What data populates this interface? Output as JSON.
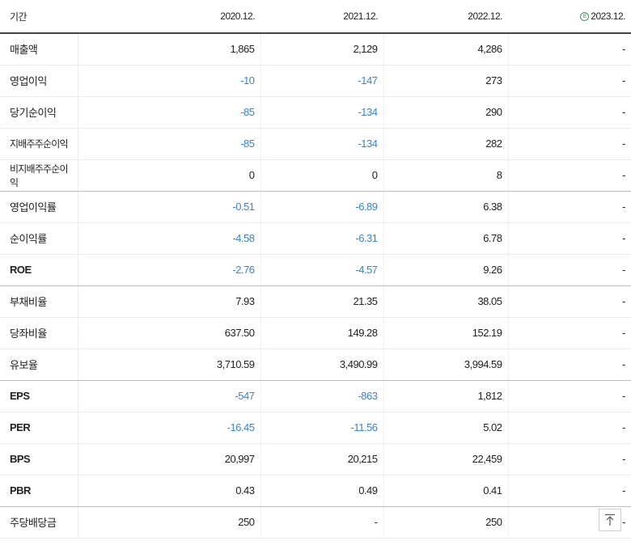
{
  "header": {
    "period_label": "기간",
    "columns": [
      "2020.12.",
      "2021.12.",
      "2022.12.",
      "2023.12."
    ],
    "estimate_badge": "E"
  },
  "rows": [
    {
      "label": "매출액",
      "values": [
        "1,865",
        "2,129",
        "4,286",
        "-"
      ]
    },
    {
      "label": "영업이익",
      "values": [
        "-10",
        "-147",
        "273",
        "-"
      ]
    },
    {
      "label": "당기순이익",
      "values": [
        "-85",
        "-134",
        "290",
        "-"
      ]
    },
    {
      "label": "지배주주순이익",
      "values": [
        "-85",
        "-134",
        "282",
        "-"
      ]
    },
    {
      "label": "비지배주주순이익",
      "values": [
        "0",
        "0",
        "8",
        "-"
      ]
    },
    {
      "label": "영업이익률",
      "values": [
        "-0.51",
        "-6.89",
        "6.38",
        "-"
      ]
    },
    {
      "label": "순이익률",
      "values": [
        "-4.58",
        "-6.31",
        "6.78",
        "-"
      ]
    },
    {
      "label": "ROE",
      "values": [
        "-2.76",
        "-4.57",
        "9.26",
        "-"
      ]
    },
    {
      "label": "부채비율",
      "values": [
        "7.93",
        "21.35",
        "38.05",
        "-"
      ]
    },
    {
      "label": "당좌비율",
      "values": [
        "637.50",
        "149.28",
        "152.19",
        "-"
      ]
    },
    {
      "label": "유보율",
      "values": [
        "3,710.59",
        "3,490.99",
        "3,994.59",
        "-"
      ]
    },
    {
      "label": "EPS",
      "values": [
        "-547",
        "-863",
        "1,812",
        "-"
      ]
    },
    {
      "label": "PER",
      "values": [
        "-16.45",
        "-11.56",
        "5.02",
        "-"
      ]
    },
    {
      "label": "BPS",
      "values": [
        "20,997",
        "20,215",
        "22,459",
        "-"
      ]
    },
    {
      "label": "PBR",
      "values": [
        "0.43",
        "0.49",
        "0.41",
        "-"
      ]
    },
    {
      "label": "주당배당금",
      "values": [
        "250",
        "-",
        "250",
        "-"
      ]
    }
  ],
  "colors": {
    "negative": "#3a82d3",
    "estimate": "#2fa05a"
  },
  "icons": {
    "scroll_top": "arrow-up-icon"
  }
}
